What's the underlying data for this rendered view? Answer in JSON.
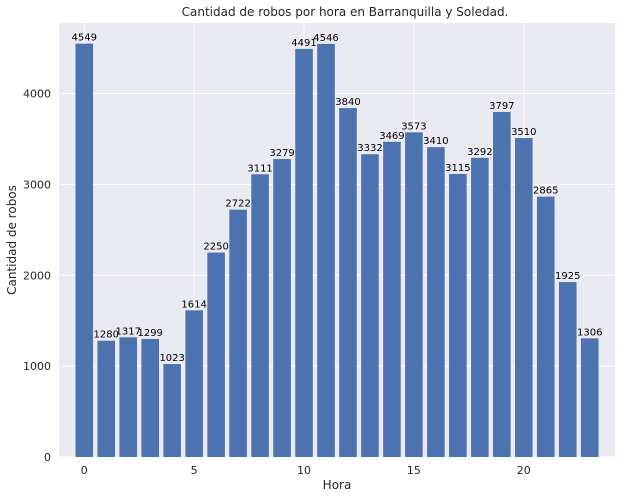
{
  "chart_data": {
    "type": "bar",
    "title": "Cantidad de robos por hora en Barranquilla y Soledad.",
    "xlabel": "Hora",
    "ylabel": "Cantidad de robos",
    "categories": [
      0,
      1,
      2,
      3,
      4,
      5,
      6,
      7,
      8,
      9,
      10,
      11,
      12,
      13,
      14,
      15,
      16,
      17,
      18,
      19,
      20,
      21,
      22,
      23
    ],
    "values": [
      4549,
      1280,
      1317,
      1299,
      1023,
      1614,
      2250,
      2722,
      3111,
      3279,
      4491,
      4546,
      3840,
      3332,
      3469,
      3573,
      3410,
      3115,
      3292,
      3797,
      3510,
      2865,
      1925,
      1306
    ],
    "x_ticks": [
      "0",
      "5",
      "10",
      "15",
      "20"
    ],
    "y_ticks": [
      "0",
      "1000",
      "2000",
      "3000",
      "4000"
    ],
    "xlim": [
      -1.15,
      24.15
    ],
    "ylim": [
      0,
      4776
    ],
    "grid": true,
    "colors": {
      "bar": "#4c72b0",
      "plot_background": "#eaeaf2",
      "grid": "#ffffff"
    }
  }
}
